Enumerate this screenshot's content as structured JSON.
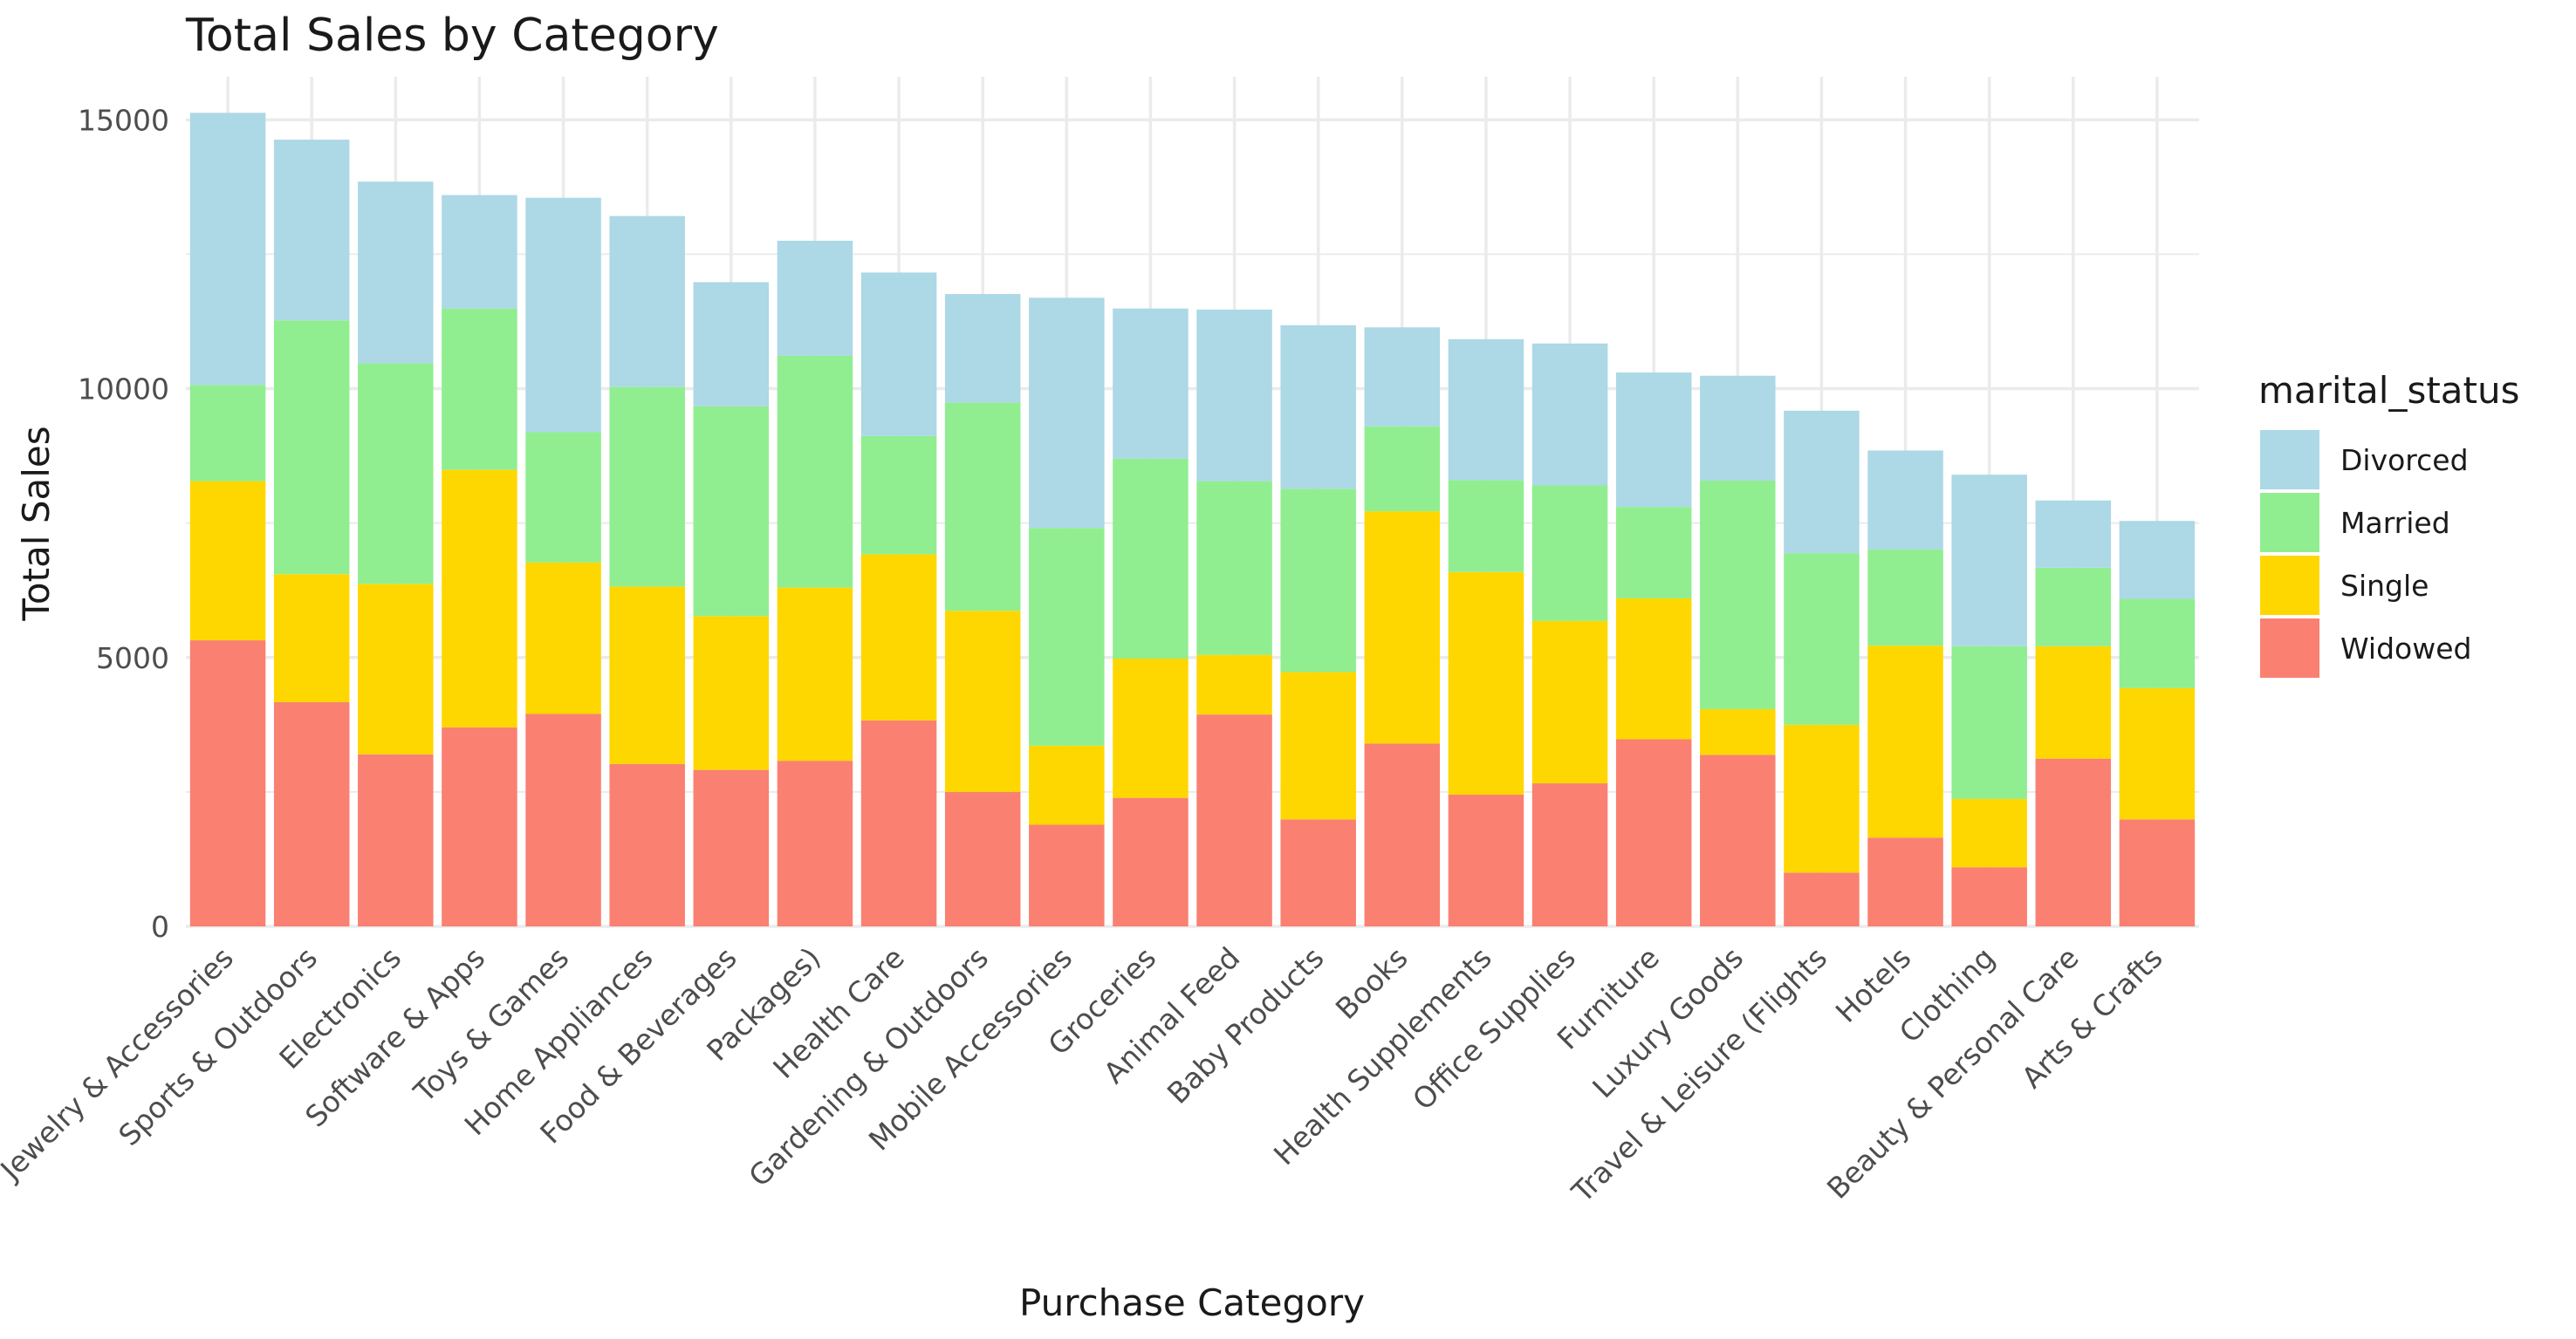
{
  "chart_data": {
    "type": "bar",
    "stacked": true,
    "title": "Total Sales by Category",
    "xlabel": "Purchase Category",
    "ylabel": "Total Sales",
    "ylim": [
      0,
      15800
    ],
    "yticks": [
      0,
      5000,
      10000,
      15000
    ],
    "ytick_labels": [
      "0",
      "5000",
      "10000",
      "15000"
    ],
    "grid": true,
    "legend": {
      "title": "marital_status",
      "position": "right"
    },
    "categories": [
      "Jewelry & Accessories",
      "Sports & Outdoors",
      "Electronics",
      "Software & Apps",
      "Toys & Games",
      "Home Appliances",
      "Food & Beverages",
      "Packages)",
      "Health Care",
      "Gardening & Outdoors",
      "Mobile Accessories",
      "Groceries",
      "Animal Feed",
      "Baby Products",
      "Books",
      "Health Supplements",
      "Office Supplies",
      "Furniture",
      "Luxury Goods",
      "Travel & Leisure (Flights",
      "Hotels",
      "Clothing",
      "Beauty & Personal Care",
      "Arts & Crafts"
    ],
    "series": [
      {
        "name": "Widowed",
        "color": "#FA8072",
        "values": [
          5320,
          4170,
          3200,
          3700,
          3950,
          3020,
          2910,
          3080,
          3830,
          2500,
          1890,
          2390,
          3940,
          1990,
          3400,
          2450,
          2660,
          3480,
          3190,
          1000,
          1650,
          1100,
          3120,
          1990
        ]
      },
      {
        "name": "Single",
        "color": "#FFD700",
        "values": [
          2960,
          2380,
          3170,
          4790,
          2820,
          3300,
          2860,
          3220,
          3090,
          3370,
          1470,
          2590,
          1110,
          2740,
          4320,
          4140,
          3020,
          2620,
          850,
          2750,
          3570,
          1270,
          2090,
          2440
        ]
      },
      {
        "name": "Married",
        "color": "#90EE90",
        "values": [
          1790,
          4720,
          4100,
          3000,
          2420,
          3710,
          3900,
          4310,
          2200,
          3870,
          4050,
          3720,
          3230,
          3410,
          1580,
          1710,
          2520,
          1700,
          4250,
          3190,
          1790,
          2840,
          1460,
          1660
        ]
      },
      {
        "name": "Divorced",
        "color": "#ADD8E6",
        "values": [
          5060,
          3360,
          3380,
          2110,
          4360,
          3180,
          2310,
          2140,
          3040,
          2020,
          4280,
          2790,
          3190,
          3040,
          1840,
          2620,
          2640,
          2500,
          1950,
          2650,
          1840,
          3190,
          1250,
          1450
        ]
      }
    ]
  }
}
